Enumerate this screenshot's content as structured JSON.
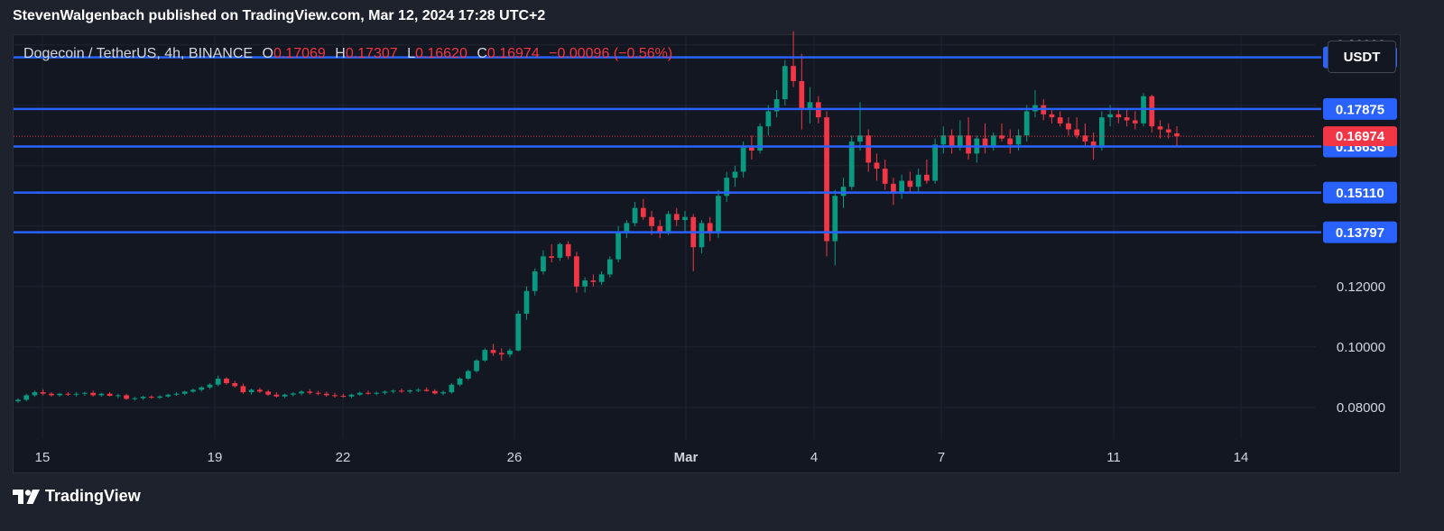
{
  "header": {
    "publisher_line": "StevenWalgenbach published on TradingView.com, Mar 12, 2024 17:28 UTC+2"
  },
  "legend": {
    "symbol": "Dogecoin / TetherUS, 4h, BINANCE",
    "open_label": "O",
    "open": "0.17069",
    "high_label": "H",
    "high": "0.17307",
    "low_label": "L",
    "low": "0.16620",
    "close_label": "C",
    "close": "0.16974",
    "change": "−0.00096 (−0.56%)"
  },
  "currency_button": "USDT",
  "brand": {
    "name": "TradingView"
  },
  "colors": {
    "up": "#089981",
    "down": "#f23645",
    "level_line": "#2962ff",
    "background": "#131722"
  },
  "chart_data": {
    "type": "candlestick",
    "x_axis": {
      "tick_labels": [
        "15",
        "19",
        "22",
        "26",
        "Mar",
        "4",
        "7",
        "11",
        "14"
      ]
    },
    "y_axis": {
      "tick_labels": [
        "0.20000",
        "0.12000",
        "0.10000",
        "0.08000"
      ],
      "ylim": [
        0.0695,
        0.2035
      ]
    },
    "levels": [
      {
        "value": 0.19586,
        "label": "0.19586"
      },
      {
        "value": 0.17875,
        "label": "0.17875"
      },
      {
        "value": 0.16636,
        "label": "0.16636"
      },
      {
        "value": 0.1511,
        "label": "0.15110"
      },
      {
        "value": 0.13797,
        "label": "0.13797"
      }
    ],
    "last_price": {
      "value": 0.16974,
      "label": "0.16974"
    },
    "candles": [
      [
        0.082,
        0.083,
        0.0815,
        0.0825
      ],
      [
        0.0825,
        0.0845,
        0.082,
        0.084
      ],
      [
        0.084,
        0.0855,
        0.0835,
        0.085
      ],
      [
        0.085,
        0.086,
        0.084,
        0.0845
      ],
      [
        0.0845,
        0.085,
        0.0835,
        0.084
      ],
      [
        0.084,
        0.0848,
        0.0835,
        0.0845
      ],
      [
        0.0845,
        0.085,
        0.0838,
        0.0842
      ],
      [
        0.0842,
        0.085,
        0.0835,
        0.0845
      ],
      [
        0.0845,
        0.0852,
        0.0838,
        0.0848
      ],
      [
        0.0848,
        0.0855,
        0.0835,
        0.084
      ],
      [
        0.084,
        0.0848,
        0.0835,
        0.0845
      ],
      [
        0.0845,
        0.085,
        0.0836,
        0.0838
      ],
      [
        0.0838,
        0.0845,
        0.083,
        0.084
      ],
      [
        0.084,
        0.0845,
        0.0825,
        0.0828
      ],
      [
        0.0828,
        0.0835,
        0.0822,
        0.083
      ],
      [
        0.083,
        0.0838,
        0.0825,
        0.0835
      ],
      [
        0.0835,
        0.084,
        0.0828,
        0.0832
      ],
      [
        0.0832,
        0.084,
        0.0828,
        0.0836
      ],
      [
        0.0836,
        0.0845,
        0.0832,
        0.0842
      ],
      [
        0.0842,
        0.085,
        0.0838,
        0.0845
      ],
      [
        0.0845,
        0.0855,
        0.084,
        0.0852
      ],
      [
        0.0852,
        0.0862,
        0.0848,
        0.0858
      ],
      [
        0.0858,
        0.087,
        0.0852,
        0.0866
      ],
      [
        0.0866,
        0.088,
        0.086,
        0.0875
      ],
      [
        0.0875,
        0.0905,
        0.087,
        0.0895
      ],
      [
        0.0895,
        0.09,
        0.0875,
        0.088
      ],
      [
        0.088,
        0.0888,
        0.0865,
        0.087
      ],
      [
        0.087,
        0.0878,
        0.0845,
        0.085
      ],
      [
        0.085,
        0.0862,
        0.0842,
        0.0858
      ],
      [
        0.0858,
        0.0865,
        0.0848,
        0.0852
      ],
      [
        0.0852,
        0.0858,
        0.0838,
        0.0842
      ],
      [
        0.0842,
        0.085,
        0.0832,
        0.0836
      ],
      [
        0.0836,
        0.0845,
        0.083,
        0.0842
      ],
      [
        0.0842,
        0.085,
        0.0836,
        0.0846
      ],
      [
        0.0846,
        0.0856,
        0.084,
        0.0852
      ],
      [
        0.0852,
        0.086,
        0.0842,
        0.0848
      ],
      [
        0.0848,
        0.0855,
        0.084,
        0.0845
      ],
      [
        0.0845,
        0.0852,
        0.0835,
        0.084
      ],
      [
        0.084,
        0.0848,
        0.0832,
        0.0838
      ],
      [
        0.0838,
        0.0845,
        0.0832,
        0.0836
      ],
      [
        0.0836,
        0.0845,
        0.083,
        0.0842
      ],
      [
        0.0842,
        0.0852,
        0.0838,
        0.0848
      ],
      [
        0.0848,
        0.0855,
        0.0842,
        0.0845
      ],
      [
        0.0845,
        0.0852,
        0.084,
        0.0848
      ],
      [
        0.0848,
        0.0856,
        0.0842,
        0.0852
      ],
      [
        0.0852,
        0.086,
        0.0846,
        0.0855
      ],
      [
        0.0855,
        0.0862,
        0.0848,
        0.0852
      ],
      [
        0.0852,
        0.086,
        0.0846,
        0.0856
      ],
      [
        0.0856,
        0.0864,
        0.085,
        0.0858
      ],
      [
        0.0858,
        0.0866,
        0.0852,
        0.0854
      ],
      [
        0.0854,
        0.086,
        0.0842,
        0.0846
      ],
      [
        0.0846,
        0.0855,
        0.084,
        0.085
      ],
      [
        0.085,
        0.088,
        0.0845,
        0.0875
      ],
      [
        0.0875,
        0.09,
        0.087,
        0.0895
      ],
      [
        0.0895,
        0.0925,
        0.089,
        0.092
      ],
      [
        0.092,
        0.096,
        0.0915,
        0.0955
      ],
      [
        0.0955,
        0.0995,
        0.095,
        0.099
      ],
      [
        0.099,
        0.101,
        0.097,
        0.098
      ],
      [
        0.098,
        0.0995,
        0.0955,
        0.0975
      ],
      [
        0.0975,
        0.0995,
        0.0965,
        0.0988
      ],
      [
        0.0988,
        0.112,
        0.0985,
        0.111
      ],
      [
        0.111,
        0.12,
        0.109,
        0.1185
      ],
      [
        0.1185,
        0.126,
        0.117,
        0.125
      ],
      [
        0.125,
        0.132,
        0.124,
        0.13
      ],
      [
        0.13,
        0.134,
        0.128,
        0.1295
      ],
      [
        0.1295,
        0.1345,
        0.1285,
        0.134
      ],
      [
        0.134,
        0.135,
        0.129,
        0.13
      ],
      [
        0.13,
        0.1315,
        0.118,
        0.12
      ],
      [
        0.12,
        0.123,
        0.118,
        0.122
      ],
      [
        0.122,
        0.124,
        0.12,
        0.1215
      ],
      [
        0.1215,
        0.125,
        0.1205,
        0.124
      ],
      [
        0.124,
        0.13,
        0.123,
        0.129
      ],
      [
        0.129,
        0.14,
        0.128,
        0.138
      ],
      [
        0.138,
        0.142,
        0.136,
        0.141
      ],
      [
        0.141,
        0.148,
        0.14,
        0.146
      ],
      [
        0.146,
        0.149,
        0.142,
        0.143
      ],
      [
        0.143,
        0.145,
        0.137,
        0.14
      ],
      [
        0.14,
        0.142,
        0.136,
        0.138
      ],
      [
        0.138,
        0.145,
        0.137,
        0.144
      ],
      [
        0.144,
        0.146,
        0.14,
        0.142
      ],
      [
        0.142,
        0.145,
        0.138,
        0.143
      ],
      [
        0.143,
        0.144,
        0.125,
        0.133
      ],
      [
        0.133,
        0.142,
        0.131,
        0.141
      ],
      [
        0.141,
        0.143,
        0.135,
        0.138
      ],
      [
        0.138,
        0.152,
        0.136,
        0.15
      ],
      [
        0.15,
        0.158,
        0.148,
        0.156
      ],
      [
        0.156,
        0.16,
        0.153,
        0.158
      ],
      [
        0.158,
        0.168,
        0.156,
        0.166
      ],
      [
        0.166,
        0.17,
        0.162,
        0.165
      ],
      [
        0.165,
        0.174,
        0.164,
        0.173
      ],
      [
        0.173,
        0.18,
        0.17,
        0.178
      ],
      [
        0.178,
        0.185,
        0.176,
        0.182
      ],
      [
        0.182,
        0.195,
        0.18,
        0.193
      ],
      [
        0.193,
        0.2045,
        0.186,
        0.188
      ],
      [
        0.188,
        0.197,
        0.172,
        0.179
      ],
      [
        0.179,
        0.186,
        0.174,
        0.181
      ],
      [
        0.181,
        0.183,
        0.174,
        0.176
      ],
      [
        0.176,
        0.178,
        0.13,
        0.135
      ],
      [
        0.135,
        0.152,
        0.127,
        0.15
      ],
      [
        0.15,
        0.156,
        0.146,
        0.153
      ],
      [
        0.153,
        0.17,
        0.152,
        0.168
      ],
      [
        0.168,
        0.181,
        0.165,
        0.17
      ],
      [
        0.17,
        0.172,
        0.158,
        0.161
      ],
      [
        0.161,
        0.164,
        0.155,
        0.159
      ],
      [
        0.159,
        0.162,
        0.152,
        0.154
      ],
      [
        0.154,
        0.156,
        0.147,
        0.151
      ],
      [
        0.151,
        0.157,
        0.149,
        0.155
      ],
      [
        0.155,
        0.158,
        0.151,
        0.153
      ],
      [
        0.153,
        0.159,
        0.151,
        0.157
      ],
      [
        0.157,
        0.162,
        0.154,
        0.155
      ],
      [
        0.155,
        0.169,
        0.154,
        0.167
      ],
      [
        0.167,
        0.173,
        0.164,
        0.17
      ],
      [
        0.17,
        0.172,
        0.164,
        0.166
      ],
      [
        0.166,
        0.175,
        0.165,
        0.17
      ],
      [
        0.17,
        0.176,
        0.162,
        0.164
      ],
      [
        0.164,
        0.17,
        0.161,
        0.169
      ],
      [
        0.169,
        0.174,
        0.164,
        0.166
      ],
      [
        0.166,
        0.171,
        0.165,
        0.17
      ],
      [
        0.17,
        0.174,
        0.168,
        0.169
      ],
      [
        0.169,
        0.172,
        0.164,
        0.167
      ],
      [
        0.167,
        0.172,
        0.165,
        0.17
      ],
      [
        0.17,
        0.18,
        0.168,
        0.178
      ],
      [
        0.178,
        0.185,
        0.176,
        0.18
      ],
      [
        0.18,
        0.182,
        0.175,
        0.177
      ],
      [
        0.177,
        0.179,
        0.174,
        0.176
      ],
      [
        0.176,
        0.178,
        0.173,
        0.174
      ],
      [
        0.174,
        0.176,
        0.17,
        0.172
      ],
      [
        0.172,
        0.176,
        0.169,
        0.17
      ],
      [
        0.17,
        0.174,
        0.166,
        0.168
      ],
      [
        0.168,
        0.171,
        0.162,
        0.166
      ],
      [
        0.166,
        0.178,
        0.165,
        0.176
      ],
      [
        0.176,
        0.18,
        0.173,
        0.177
      ],
      [
        0.177,
        0.179,
        0.174,
        0.176
      ],
      [
        0.176,
        0.179,
        0.173,
        0.175
      ],
      [
        0.175,
        0.178,
        0.172,
        0.174
      ],
      [
        0.174,
        0.184,
        0.173,
        0.183
      ],
      [
        0.183,
        0.1835,
        0.171,
        0.173
      ],
      [
        0.173,
        0.175,
        0.169,
        0.172
      ],
      [
        0.172,
        0.174,
        0.169,
        0.171
      ],
      [
        0.17069,
        0.17307,
        0.1662,
        0.16974
      ]
    ]
  }
}
